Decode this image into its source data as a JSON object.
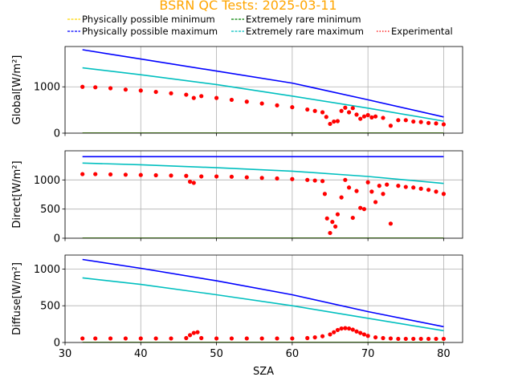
{
  "chart_data": {
    "type": "scatter",
    "title": "BSRN QC Tests: 2025-03-11",
    "title_color": "#ffa500",
    "xlabel": "SZA",
    "xlim": [
      30,
      82.5
    ],
    "x_ticks": [
      30,
      40,
      50,
      60,
      70,
      80
    ],
    "grid": true,
    "legend": {
      "placement": "top",
      "entries": [
        {
          "label": "Physically possible minimum",
          "color": "#ffd700",
          "style": "dashed"
        },
        {
          "label": "Physically possible maximum",
          "color": "#0000ff",
          "style": "dashed"
        },
        {
          "label": "Extremely rare minimum",
          "color": "#008000",
          "style": "dashed"
        },
        {
          "label": "Extremely rare maximum",
          "color": "#00bfbf",
          "style": "dashed"
        },
        {
          "label": "Experimental",
          "color": "#ff0000",
          "style": "dotted"
        }
      ]
    },
    "panels": [
      {
        "ylabel": "Global[W/m²]",
        "ylim": [
          0,
          1870
        ],
        "y_ticks": [
          0,
          1000
        ],
        "series": [
          {
            "role": "Physically possible minimum",
            "x": [
              32.3,
              80
            ],
            "y": [
              0,
              0
            ]
          },
          {
            "role": "Extremely rare minimum",
            "x": [
              32.3,
              80
            ],
            "y": [
              0,
              0
            ]
          },
          {
            "role": "Physically possible maximum",
            "x": [
              32.3,
              40,
              50,
              60,
              70,
              80
            ],
            "y": [
              1800,
              1600,
              1340,
              1080,
              720,
              350
            ]
          },
          {
            "role": "Extremely rare maximum",
            "x": [
              32.3,
              40,
              50,
              60,
              70,
              80
            ],
            "y": [
              1410,
              1260,
              1050,
              800,
              540,
              260
            ]
          },
          {
            "role": "Experimental",
            "x": [
              32.3,
              34,
              36,
              38,
              40,
              42,
              44,
              46,
              47,
              48,
              50,
              52,
              54,
              56,
              58,
              60,
              62,
              63,
              64,
              64.5,
              65,
              65.5,
              66,
              66.5,
              67,
              67.5,
              68,
              68.5,
              69,
              69.5,
              70,
              70.5,
              71,
              72,
              73,
              74,
              75,
              76,
              77,
              78,
              79,
              80
            ],
            "y": [
              1000,
              990,
              970,
              940,
              920,
              890,
              860,
              830,
              760,
              800,
              760,
              720,
              680,
              640,
              600,
              560,
              510,
              480,
              450,
              350,
              200,
              250,
              260,
              480,
              550,
              450,
              540,
              400,
              310,
              360,
              390,
              340,
              360,
              330,
              160,
              280,
              280,
              250,
              240,
              220,
              210,
              190
            ]
          }
        ]
      },
      {
        "ylabel": "Direct[W/m²]",
        "ylim": [
          0,
          1500
        ],
        "y_ticks": [
          0,
          500,
          1000
        ],
        "series": [
          {
            "role": "Physically possible minimum",
            "x": [
              32.3,
              80
            ],
            "y": [
              0,
              0
            ]
          },
          {
            "role": "Extremely rare minimum",
            "x": [
              32.3,
              80
            ],
            "y": [
              0,
              0
            ]
          },
          {
            "role": "Physically possible maximum",
            "x": [
              32.3,
              80
            ],
            "y": [
              1400,
              1400
            ]
          },
          {
            "role": "Extremely rare maximum",
            "x": [
              32.3,
              40,
              50,
              60,
              70,
              80
            ],
            "y": [
              1290,
              1260,
              1210,
              1150,
              1060,
              940
            ]
          },
          {
            "role": "Experimental",
            "x": [
              32.3,
              34,
              36,
              38,
              40,
              42,
              44,
              46,
              46.5,
              47,
              48,
              50,
              52,
              54,
              56,
              58,
              60,
              62,
              63,
              64,
              64.3,
              64.6,
              65,
              65.3,
              65.7,
              66,
              66.5,
              67,
              67.5,
              68,
              68.5,
              69,
              69.5,
              70,
              70.5,
              71,
              71.5,
              72,
              72.5,
              73,
              74,
              75,
              76,
              77,
              78,
              79,
              80
            ],
            "y": [
              1100,
              1100,
              1095,
              1090,
              1085,
              1080,
              1075,
              1070,
              970,
              950,
              1060,
              1060,
              1055,
              1045,
              1035,
              1025,
              1015,
              1000,
              990,
              980,
              760,
              340,
              90,
              280,
              200,
              410,
              700,
              1000,
              870,
              350,
              810,
              520,
              500,
              960,
              800,
              620,
              900,
              760,
              920,
              250,
              900,
              880,
              870,
              850,
              830,
              800,
              760
            ]
          }
        ]
      },
      {
        "ylabel": "Diffuse[W/m²]",
        "ylim": [
          0,
          1190
        ],
        "y_ticks": [
          0,
          500,
          1000
        ],
        "series": [
          {
            "role": "Physically possible minimum",
            "x": [
              32.3,
              80
            ],
            "y": [
              0,
              0
            ]
          },
          {
            "role": "Extremely rare minimum",
            "x": [
              32.3,
              80
            ],
            "y": [
              0,
              0
            ]
          },
          {
            "role": "Physically possible maximum",
            "x": [
              32.3,
              40,
              50,
              60,
              70,
              80
            ],
            "y": [
              1130,
              1010,
              840,
              650,
              420,
              215
            ]
          },
          {
            "role": "Extremely rare maximum",
            "x": [
              32.3,
              40,
              50,
              60,
              70,
              80
            ],
            "y": [
              880,
              790,
              650,
              500,
              330,
              160
            ]
          },
          {
            "role": "Experimental",
            "x": [
              32.3,
              34,
              36,
              38,
              40,
              42,
              44,
              46,
              46.5,
              47,
              47.5,
              48,
              50,
              52,
              54,
              56,
              58,
              60,
              62,
              63,
              64,
              65,
              65.5,
              66,
              66.5,
              67,
              67.5,
              68,
              68.5,
              69,
              69.5,
              70,
              71,
              72,
              73,
              74,
              75,
              76,
              77,
              78,
              79,
              80
            ],
            "y": [
              55,
              55,
              55,
              55,
              55,
              55,
              55,
              60,
              100,
              130,
              140,
              60,
              55,
              55,
              55,
              55,
              55,
              55,
              60,
              70,
              85,
              110,
              140,
              170,
              190,
              195,
              190,
              175,
              150,
              130,
              110,
              90,
              70,
              60,
              55,
              50,
              50,
              50,
              50,
              50,
              50,
              50
            ]
          }
        ]
      }
    ]
  }
}
